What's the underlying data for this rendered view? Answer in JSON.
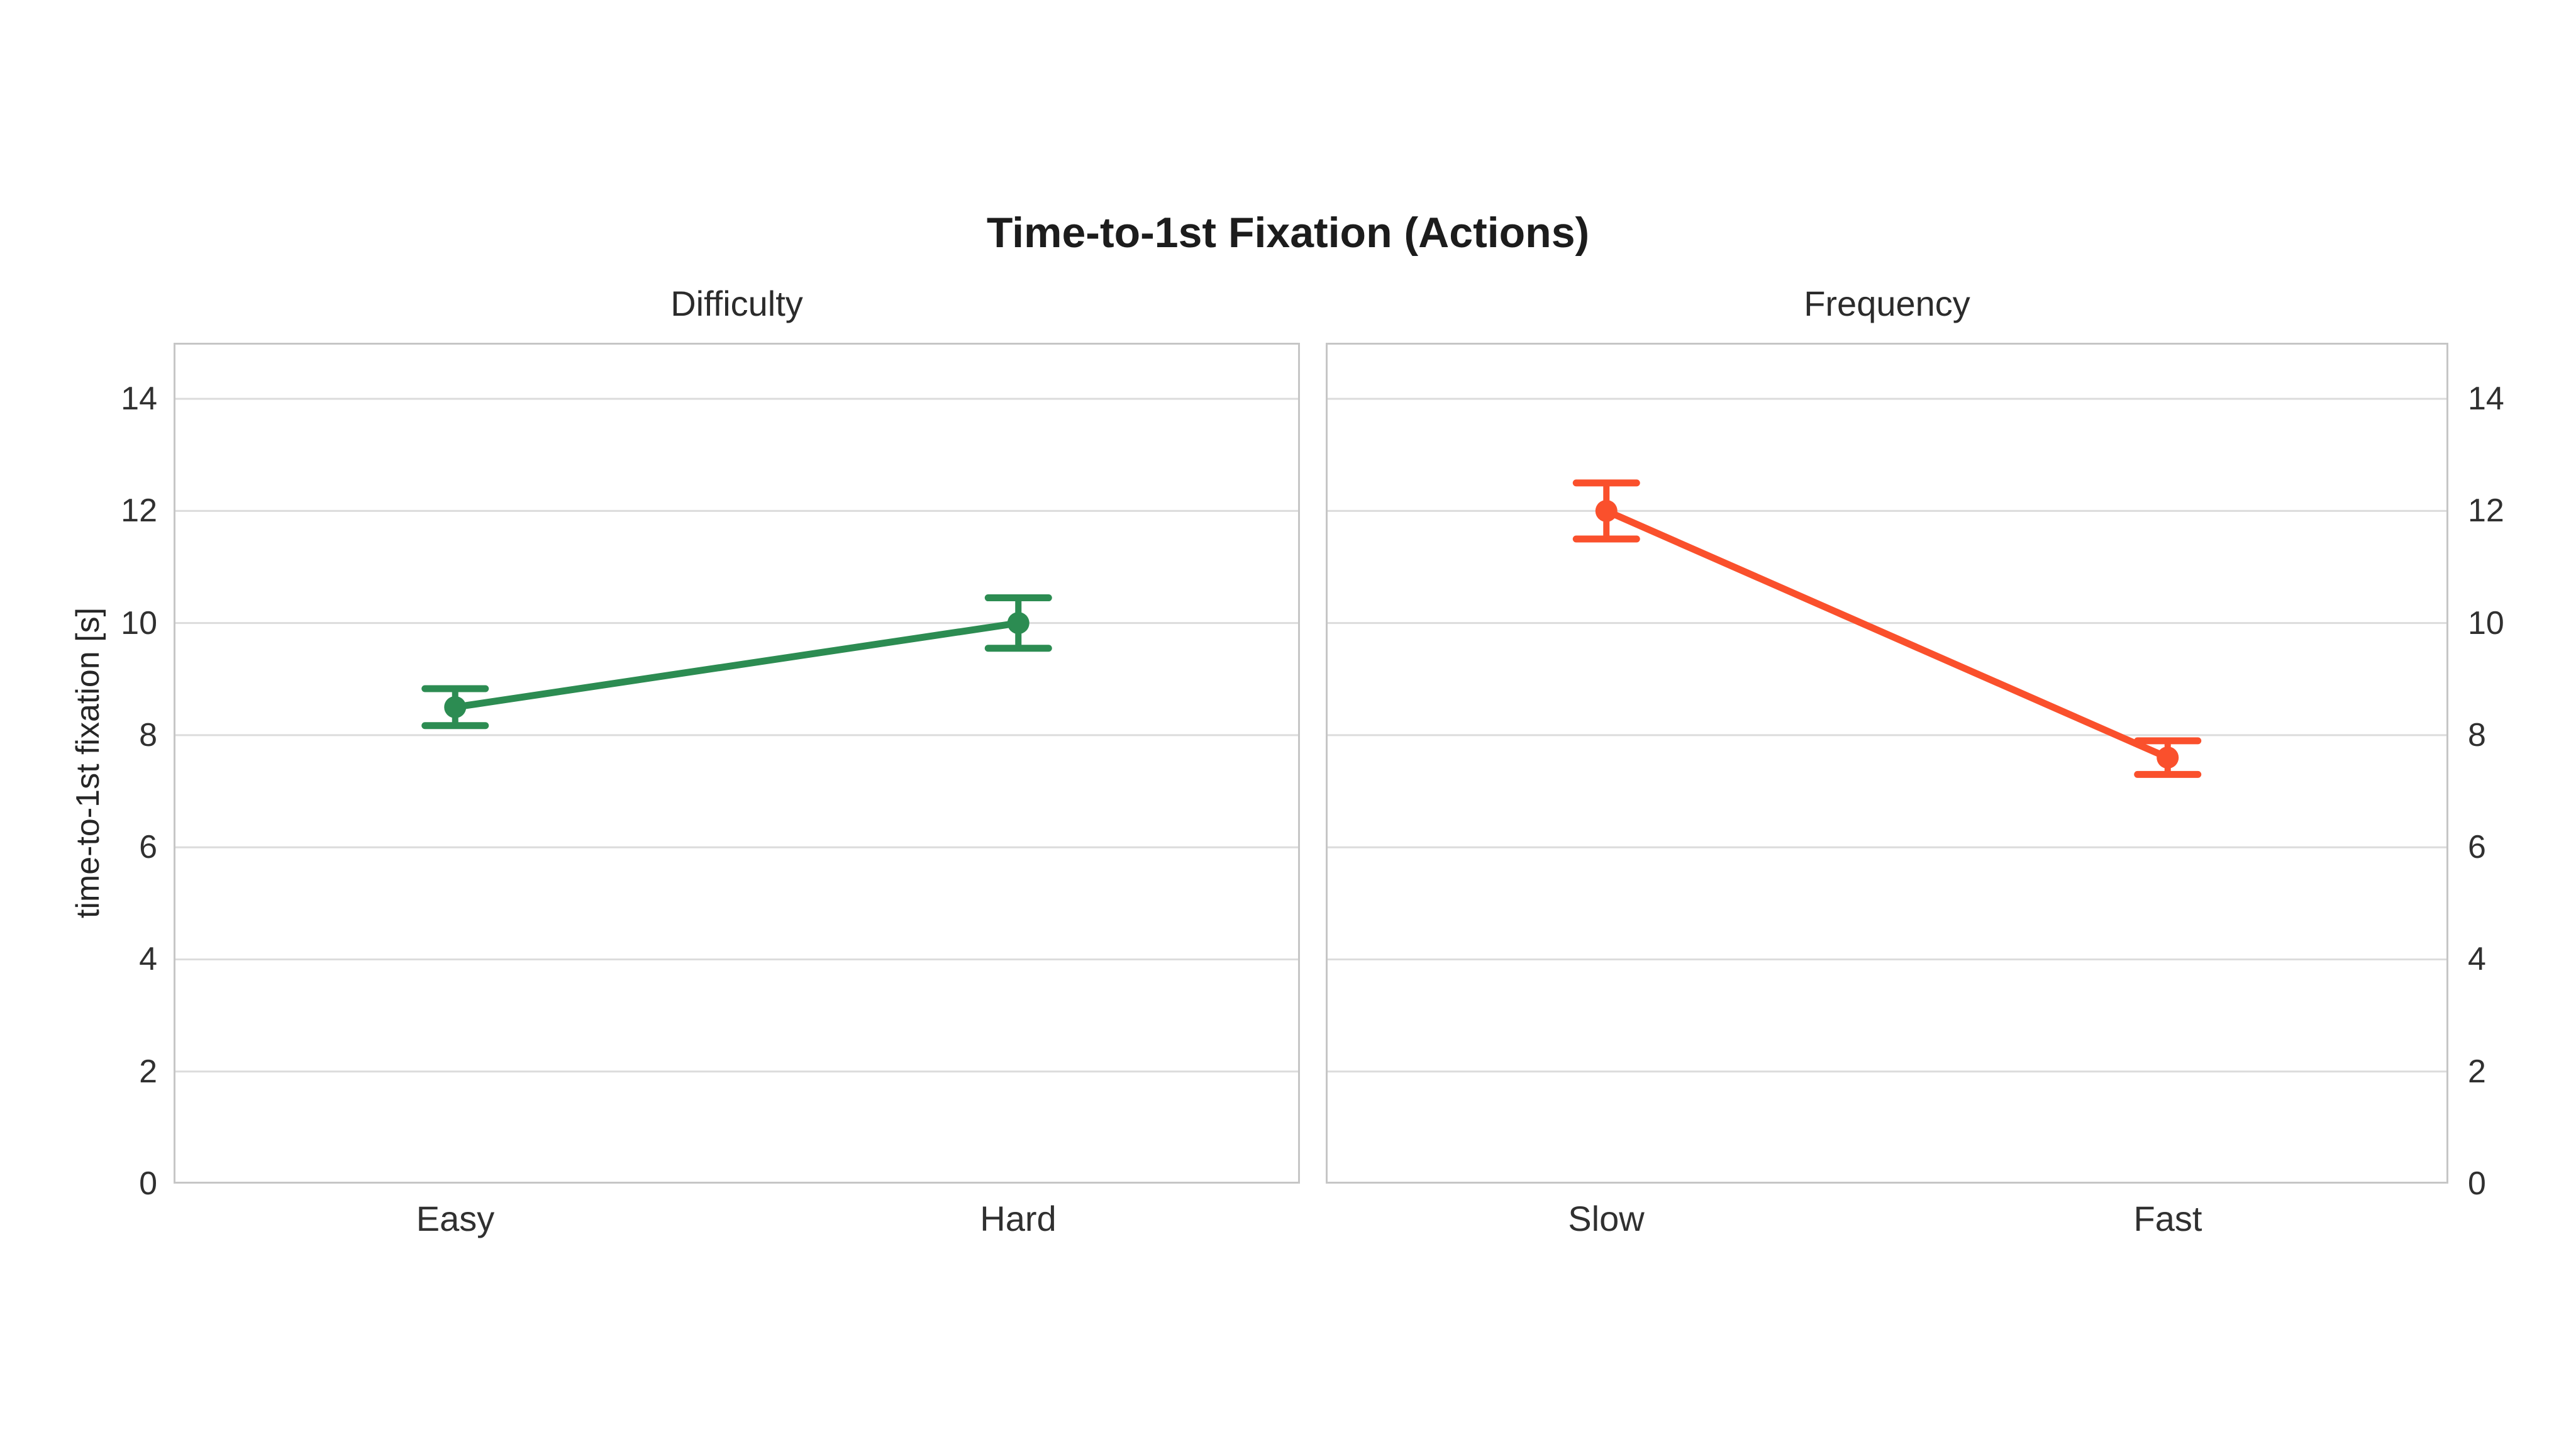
{
  "figure": {
    "title": "Time-to-1st Fixation (Actions)",
    "y_axis_label": "time-to-1st fixation [s]"
  },
  "chart_data": [
    {
      "type": "line",
      "title": "Difficulty",
      "categories": [
        "Easy",
        "Hard"
      ],
      "series": [
        {
          "name": "Difficulty",
          "values": [
            8.5,
            10.0
          ],
          "errors": [
            0.33,
            0.45
          ]
        }
      ],
      "color": "#2c8c52",
      "ylabel": "time-to-1st fixation [s]",
      "ylim": [
        0,
        15
      ],
      "yticks": [
        0,
        2,
        4,
        6,
        8,
        10,
        12,
        14
      ],
      "ytick_side": "left",
      "grid": true,
      "marker": "circle",
      "error_caps": true
    },
    {
      "type": "line",
      "title": "Frequency",
      "categories": [
        "Slow",
        "Fast"
      ],
      "series": [
        {
          "name": "Frequency",
          "values": [
            12.0,
            7.6
          ],
          "errors": [
            0.5,
            0.3
          ]
        }
      ],
      "color": "#fa502c",
      "ylabel": "time-to-1st fixation [s]",
      "ylim": [
        0,
        15
      ],
      "yticks": [
        0,
        2,
        4,
        6,
        8,
        10,
        12,
        14
      ],
      "ytick_side": "right",
      "grid": true,
      "marker": "circle",
      "error_caps": true
    }
  ],
  "style": {
    "grid_color": "#dcdcdc",
    "spine_color": "#c6c6c6",
    "background": "#ffffff"
  }
}
